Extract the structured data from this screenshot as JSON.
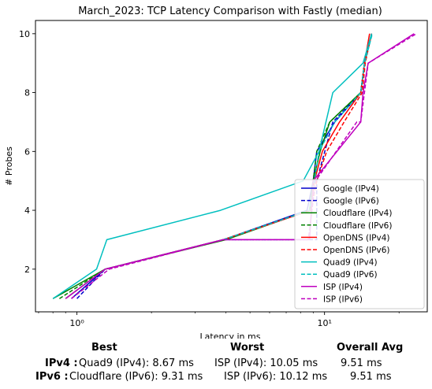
{
  "chart_data": {
    "type": "line",
    "title": "March_2023: TCP Latency Comparison with Fastly (median)",
    "xlabel": "Latency in ms",
    "ylabel": "# Probes",
    "xscale": "log",
    "xlim": [
      0.68,
      26
    ],
    "ylim": [
      0.55,
      10.45
    ],
    "xticks": [
      {
        "v": 1,
        "label": "10⁰"
      },
      {
        "v": 10,
        "label": "10¹"
      }
    ],
    "yticks": [
      2,
      4,
      6,
      8,
      10
    ],
    "legend_position": "lower-right",
    "series": [
      {
        "name": "Google (IPv4)",
        "color": "#0000cc",
        "dash": false,
        "x": [
          0.95,
          1.3,
          3.9,
          8.5,
          9.0,
          9.3,
          11.0,
          14.0,
          14.5,
          15.5
        ],
        "y": [
          1,
          2,
          3,
          4,
          5,
          6,
          7,
          8,
          9,
          10
        ]
      },
      {
        "name": "Google (IPv6)",
        "color": "#0000cc",
        "dash": true,
        "x": [
          1.0,
          1.3,
          3.9,
          8.6,
          9.3,
          9.3,
          10.8,
          14.0,
          14.5,
          15.5
        ],
        "y": [
          1,
          2,
          3,
          3,
          3,
          5,
          7,
          8,
          9,
          10
        ]
      },
      {
        "name": "Cloudflare (IPv4)",
        "color": "#008000",
        "dash": false,
        "x": [
          0.8,
          1.3,
          4.0,
          8.7,
          9.0,
          9.6,
          10.5,
          14.0,
          14.5,
          15.5
        ],
        "y": [
          1,
          2,
          3,
          4,
          5,
          6,
          7,
          8,
          9,
          10
        ]
      },
      {
        "name": "Cloudflare (IPv6)",
        "color": "#008000",
        "dash": true,
        "x": [
          0.85,
          1.3,
          3.9,
          8.7,
          9.0,
          9.3,
          10.5,
          14.0,
          14.5,
          15.5
        ],
        "y": [
          1,
          2,
          3,
          4,
          5,
          6,
          7,
          8,
          9,
          10
        ]
      },
      {
        "name": "OpenDNS (IPv4)",
        "color": "#ff0000",
        "dash": false,
        "x": [
          0.9,
          1.3,
          3.9,
          8.8,
          9.1,
          9.8,
          11.5,
          14.0,
          14.5,
          15.2
        ],
        "y": [
          1,
          2,
          3,
          4,
          5,
          6,
          7,
          8,
          9,
          10
        ]
      },
      {
        "name": "OpenDNS (IPv6)",
        "color": "#ff0000",
        "dash": true,
        "x": [
          0.9,
          1.3,
          3.9,
          8.8,
          9.3,
          10.2,
          12.0,
          14.2,
          14.6,
          15.5
        ],
        "y": [
          1,
          2,
          3,
          4,
          5,
          6,
          7,
          8,
          9,
          10
        ]
      },
      {
        "name": "Quad9 (IPv4)",
        "color": "#00bfbf",
        "dash": false,
        "x": [
          0.8,
          1.2,
          1.32,
          3.8,
          8.2,
          9.5,
          10.8,
          14.3,
          15.5
        ],
        "y": [
          1,
          2,
          3,
          4,
          5,
          6,
          8,
          9,
          10
        ]
      },
      {
        "name": "Quad9 (IPv6)",
        "color": "#00bfbf",
        "dash": true,
        "x": [
          0.9,
          1.3,
          3.9,
          8.7,
          9.1,
          9.5,
          11.0,
          14.0,
          14.5,
          15.6
        ],
        "y": [
          1,
          2,
          3,
          4,
          5,
          6,
          7,
          8,
          9,
          10
        ]
      },
      {
        "name": "ISP (IPv4)",
        "color": "#bf00bf",
        "dash": false,
        "x": [
          0.9,
          1.3,
          3.9,
          8.5,
          8.7,
          9.0,
          14.0,
          14.3,
          15.0,
          23.0
        ],
        "y": [
          1,
          2,
          3,
          3,
          3,
          5,
          7,
          8,
          9,
          10
        ]
      },
      {
        "name": "ISP (IPv6)",
        "color": "#bf00bf",
        "dash": true,
        "x": [
          0.95,
          1.35,
          3.9,
          8.4,
          8.6,
          9.2,
          13.5,
          14.0,
          15.0,
          23.5
        ],
        "y": [
          1,
          2,
          3,
          3,
          3,
          5,
          7,
          7,
          9,
          10
        ]
      }
    ]
  },
  "summary": {
    "headers": {
      "best": "Best",
      "worst": "Worst",
      "avg": "Overall Avg"
    },
    "rows": [
      {
        "label": "IPv4 :",
        "best": "Quad9 (IPv4): 8.67 ms",
        "worst": "ISP (IPv4): 10.05 ms",
        "avg": "9.51 ms"
      },
      {
        "label": "IPv6 :",
        "best": "Cloudflare (IPv6): 9.31 ms",
        "worst": "ISP (IPv6): 10.12 ms",
        "avg": "9.51 ms"
      }
    ]
  }
}
